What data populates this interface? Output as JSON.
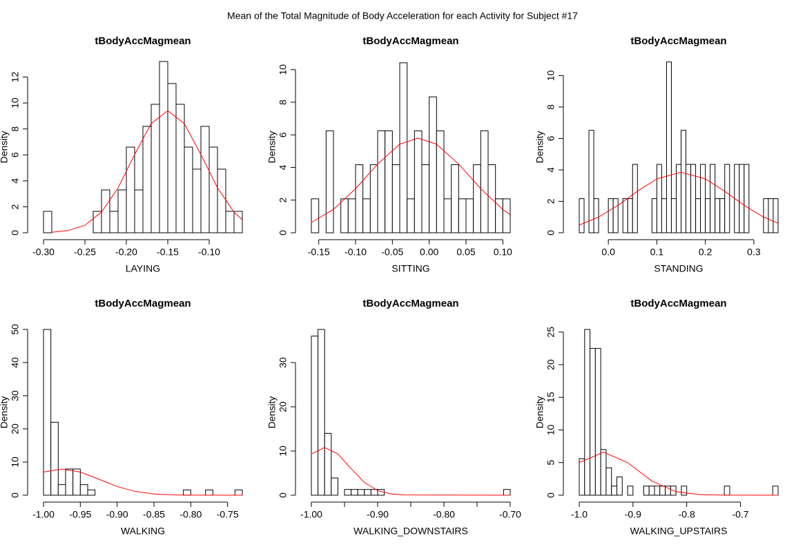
{
  "title": "Mean of the Total Magnitude of Body Acceleration for each Activity for Subject #17",
  "chart_data": [
    {
      "type": "histogram",
      "title": "tBodyAccMagmean",
      "xlabel": "LAYING",
      "ylabel": "Density",
      "color": "#ffffff",
      "bins": [
        -0.3,
        -0.29,
        -0.28,
        -0.27,
        -0.26,
        -0.25,
        -0.24,
        -0.23,
        -0.22,
        -0.21,
        -0.2,
        -0.19,
        -0.18,
        -0.17,
        -0.16,
        -0.15,
        -0.14,
        -0.13,
        -0.12,
        -0.11,
        -0.1,
        -0.09,
        -0.08,
        -0.07,
        -0.06
      ],
      "values": [
        1.65,
        0,
        0,
        0,
        0,
        0,
        1.65,
        3.3,
        1.65,
        3.3,
        6.6,
        3.3,
        8.2,
        9.9,
        13.2,
        11.5,
        9.9,
        6.6,
        4.9,
        8.2,
        6.6,
        4.9,
        1.65,
        1.65
      ],
      "curve": {
        "color": "#ff0000",
        "x": [
          -0.29,
          -0.27,
          -0.25,
          -0.23,
          -0.21,
          -0.19,
          -0.17,
          -0.15,
          -0.13,
          -0.11,
          -0.09,
          -0.07,
          -0.06
        ],
        "values": [
          0.04,
          0.17,
          0.58,
          1.59,
          3.46,
          6.03,
          8.41,
          9.4,
          8.41,
          6.03,
          3.46,
          1.59,
          0.99
        ]
      },
      "xlim": [
        -0.3,
        -0.06
      ],
      "xticks": [
        {
          "value": -0.3,
          "label": "-0.30"
        },
        -0.25,
        {
          "value": -0.2,
          "label": "-0.20"
        },
        -0.15,
        {
          "value": -0.1,
          "label": "-0.10"
        }
      ],
      "ylim": [
        0,
        13.2
      ],
      "yticks": [
        0,
        2,
        4,
        6,
        8,
        10,
        12
      ]
    },
    {
      "type": "histogram",
      "title": "tBodyAccMagmean",
      "xlabel": "SITTING",
      "ylabel": "Density",
      "color": "#ffffff",
      "bins": [
        -0.16,
        -0.15,
        -0.14,
        -0.13,
        -0.12,
        -0.11,
        -0.1,
        -0.09,
        -0.08,
        -0.07,
        -0.06,
        -0.05,
        -0.04,
        -0.03,
        -0.02,
        -0.01,
        0.0,
        0.01,
        0.02,
        0.03,
        0.04,
        0.05,
        0.06,
        0.07,
        0.08,
        0.09,
        0.1,
        0.11
      ],
      "values": [
        2.08,
        0,
        6.25,
        0,
        2.08,
        2.08,
        4.17,
        2.08,
        4.17,
        6.25,
        6.25,
        4.17,
        10.42,
        2.08,
        6.25,
        4.17,
        8.33,
        6.25,
        2.08,
        4.17,
        2.08,
        2.08,
        4.17,
        6.25,
        4.17,
        2.08,
        2.08
      ],
      "curve": {
        "color": "#ff0000",
        "x": [
          -0.16,
          -0.13,
          -0.1,
          -0.07,
          -0.04,
          -0.015,
          0.01,
          0.04,
          0.07,
          0.1,
          0.11
        ],
        "values": [
          0.63,
          1.43,
          2.7,
          4.21,
          5.43,
          5.8,
          5.43,
          4.21,
          2.7,
          1.43,
          1.11
        ]
      },
      "xlim": [
        -0.16,
        0.11
      ],
      "xticks": [
        -0.15,
        {
          "value": -0.1,
          "label": "-0.10"
        },
        -0.05,
        {
          "value": 0,
          "label": "0.00"
        },
        0.05,
        {
          "value": 0.1,
          "label": "0.10"
        }
      ],
      "ylim": [
        0,
        10.5
      ],
      "yticks": [
        0,
        2,
        4,
        6,
        8,
        10
      ]
    },
    {
      "type": "histogram",
      "title": "tBodyAccMagmean",
      "xlabel": "STANDING",
      "ylabel": "Density",
      "color": "#ffffff",
      "bins": [
        -0.06,
        -0.05,
        -0.04,
        -0.03,
        -0.02,
        -0.01,
        0.0,
        0.01,
        0.02,
        0.03,
        0.04,
        0.05,
        0.06,
        0.07,
        0.08,
        0.09,
        0.1,
        0.11,
        0.12,
        0.13,
        0.14,
        0.15,
        0.16,
        0.17,
        0.18,
        0.19,
        0.2,
        0.21,
        0.22,
        0.23,
        0.24,
        0.25,
        0.26,
        0.27,
        0.28,
        0.29,
        0.3,
        0.31,
        0.32,
        0.33,
        0.34,
        0.35
      ],
      "values": [
        2.17,
        0,
        6.52,
        2.17,
        0,
        0,
        2.17,
        2.17,
        0,
        2.17,
        2.17,
        4.35,
        0,
        0,
        0,
        2.17,
        4.35,
        2.17,
        10.87,
        2.17,
        4.35,
        6.52,
        4.35,
        4.35,
        2.17,
        4.35,
        2.17,
        4.35,
        2.17,
        2.17,
        4.35,
        0,
        4.35,
        4.35,
        4.35,
        0,
        0,
        0,
        2.17,
        2.17,
        2.17
      ],
      "curve": {
        "color": "#ff0000",
        "x": [
          -0.06,
          -0.02,
          0.02,
          0.06,
          0.1,
          0.15,
          0.2,
          0.24,
          0.28,
          0.32,
          0.35
        ],
        "values": [
          0.49,
          1.0,
          1.75,
          2.64,
          3.43,
          3.85,
          3.43,
          2.64,
          1.75,
          1.0,
          0.6
        ]
      },
      "xlim": [
        -0.06,
        0.35
      ],
      "xticks": [
        {
          "value": 0,
          "label": "0.0"
        },
        0.1,
        0.2,
        0.3
      ],
      "ylim": [
        0,
        10.9
      ],
      "yticks": [
        0,
        2,
        4,
        6,
        8,
        10
      ]
    },
    {
      "type": "histogram",
      "title": "tBodyAccMagmean",
      "xlabel": "WALKING",
      "ylabel": "Density",
      "color": "#ffffff",
      "bins": [
        -1.0,
        -0.99,
        -0.98,
        -0.97,
        -0.96,
        -0.95,
        -0.94,
        -0.93,
        -0.92,
        -0.91,
        -0.9,
        -0.89,
        -0.88,
        -0.87,
        -0.86,
        -0.85,
        -0.84,
        -0.83,
        -0.82,
        -0.81,
        -0.8,
        -0.79,
        -0.78,
        -0.77,
        -0.76,
        -0.75,
        -0.74,
        -0.73
      ],
      "values": [
        50,
        22,
        3.2,
        7.9,
        7.9,
        3.2,
        1.6,
        0,
        0,
        0,
        0,
        0,
        0,
        0,
        0,
        0,
        0,
        0,
        0,
        1.6,
        0,
        0,
        1.6,
        0,
        0,
        0,
        1.6
      ],
      "curve": {
        "color": "#ff0000",
        "x": [
          -1.0,
          -0.975,
          -0.95,
          -0.925,
          -0.9,
          -0.875,
          -0.85,
          -0.825,
          -0.8,
          -0.73
        ],
        "values": [
          6.99,
          7.9,
          6.99,
          4.84,
          2.62,
          1.11,
          0.37,
          0.1,
          0.02,
          0
        ]
      },
      "xlim": [
        -1.0,
        -0.73
      ],
      "xticks": [
        {
          "value": -1.0,
          "label": "-1.00"
        },
        -0.95,
        {
          "value": -0.9,
          "label": "-0.90"
        },
        -0.85,
        {
          "value": -0.8,
          "label": "-0.80"
        },
        -0.75
      ],
      "ylim": [
        0,
        50
      ],
      "yticks": [
        0,
        10,
        20,
        30,
        40,
        50
      ]
    },
    {
      "type": "histogram",
      "title": "tBodyAccMagmean",
      "xlabel": "WALKING_DOWNSTAIRS",
      "ylabel": "Density",
      "color": "#ffffff",
      "bins": [
        -1.0,
        -0.99,
        -0.98,
        -0.97,
        -0.96,
        -0.95,
        -0.94,
        -0.93,
        -0.92,
        -0.91,
        -0.9,
        -0.89,
        -0.88,
        -0.87,
        -0.86,
        -0.85,
        -0.84,
        -0.83,
        -0.82,
        -0.81,
        -0.8,
        -0.79,
        -0.78,
        -0.77,
        -0.76,
        -0.75,
        -0.74,
        -0.73,
        -0.72,
        -0.71,
        -0.7
      ],
      "values": [
        36,
        37.5,
        14,
        3.9,
        0,
        1.3,
        1.3,
        1.3,
        1.3,
        1.3,
        1.3,
        0,
        0,
        0,
        0,
        0,
        0,
        0,
        0,
        0,
        0,
        0,
        0,
        0,
        0,
        0,
        0,
        0,
        0,
        1.3
      ],
      "curve": {
        "color": "#ff0000",
        "x": [
          -1.0,
          -0.98,
          -0.96,
          -0.94,
          -0.92,
          -0.9,
          -0.88,
          -0.86,
          -0.7
        ],
        "values": [
          9.33,
          10.8,
          9.33,
          6.01,
          2.89,
          1.04,
          0.28,
          0.06,
          0
        ]
      },
      "xlim": [
        -1.0,
        -0.7
      ],
      "xticks": [
        {
          "value": -1.0,
          "label": "-1.00"
        },
        {
          "value": -0.95,
          "label": null
        },
        {
          "value": -0.9,
          "label": "-0.90"
        },
        {
          "value": -0.85,
          "label": null
        },
        {
          "value": -0.8,
          "label": "-0.80"
        },
        {
          "value": -0.75,
          "label": null
        },
        {
          "value": -0.7,
          "label": "-0.70"
        }
      ],
      "ylim": [
        0,
        37.5
      ],
      "yticks": [
        0,
        10,
        20,
        30
      ]
    },
    {
      "type": "histogram",
      "title": "tBodyAccMagmean",
      "xlabel": "WALKING_UPSTAIRS",
      "ylabel": "Density",
      "color": "#ffffff",
      "bins": [
        -1.0,
        -0.99,
        -0.98,
        -0.97,
        -0.96,
        -0.95,
        -0.94,
        -0.93,
        -0.92,
        -0.91,
        -0.9,
        -0.89,
        -0.88,
        -0.87,
        -0.86,
        -0.85,
        -0.84,
        -0.83,
        -0.82,
        -0.81,
        -0.8,
        -0.79,
        -0.78,
        -0.77,
        -0.76,
        -0.75,
        -0.74,
        -0.73,
        -0.72,
        -0.71,
        -0.7,
        -0.69,
        -0.68,
        -0.67,
        -0.66,
        -0.65,
        -0.64,
        -0.63
      ],
      "values": [
        5.6,
        25.4,
        22.5,
        22.5,
        7.0,
        4.2,
        1.4,
        2.8,
        0,
        1.4,
        0,
        0,
        1.4,
        1.4,
        1.4,
        1.4,
        1.4,
        1.4,
        0,
        1.4,
        0,
        0,
        0,
        0,
        0,
        0,
        0,
        1.4,
        0,
        0,
        0,
        0,
        0,
        0,
        0,
        0,
        1.4
      ],
      "curve": {
        "color": "#ff0000",
        "x": [
          -1.0,
          -0.955,
          -0.91,
          -0.865,
          -0.82,
          -0.775,
          -0.73,
          -0.63
        ],
        "values": [
          5.0,
          6.6,
          5.0,
          2.18,
          0.54,
          0.08,
          0.01,
          0
        ]
      },
      "xlim": [
        -1.0,
        -0.63
      ],
      "xticks": [
        {
          "value": -1.0,
          "label": "-1.0"
        },
        -0.9,
        -0.8,
        -0.7
      ],
      "ylim": [
        0,
        25.4
      ],
      "yticks": [
        0,
        5,
        10,
        15,
        20,
        25
      ]
    }
  ]
}
